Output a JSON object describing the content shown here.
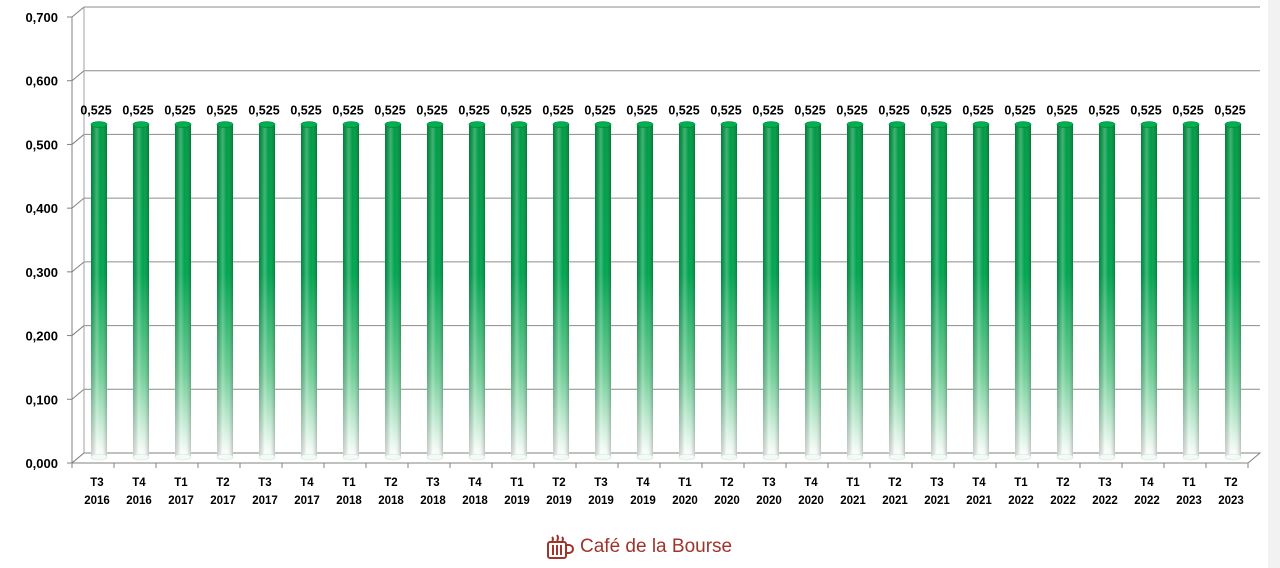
{
  "chart_data": {
    "type": "bar",
    "title": "",
    "xlabel": "",
    "ylabel": "",
    "ylim": [
      0,
      0.7
    ],
    "yticks": [
      "0,000",
      "0,100",
      "0,200",
      "0,300",
      "0,400",
      "0,500",
      "0,600",
      "0,700"
    ],
    "grid": true,
    "bar_color": "#009a44",
    "categories": [
      [
        "T3",
        "2016"
      ],
      [
        "T4",
        "2016"
      ],
      [
        "T1",
        "2017"
      ],
      [
        "T2",
        "2017"
      ],
      [
        "T3",
        "2017"
      ],
      [
        "T4",
        "2017"
      ],
      [
        "T1",
        "2018"
      ],
      [
        "T2",
        "2018"
      ],
      [
        "T3",
        "2018"
      ],
      [
        "T4",
        "2018"
      ],
      [
        "T1",
        "2019"
      ],
      [
        "T2",
        "2019"
      ],
      [
        "T3",
        "2019"
      ],
      [
        "T4",
        "2019"
      ],
      [
        "T1",
        "2020"
      ],
      [
        "T2",
        "2020"
      ],
      [
        "T3",
        "2020"
      ],
      [
        "T4",
        "2020"
      ],
      [
        "T1",
        "2021"
      ],
      [
        "T2",
        "2021"
      ],
      [
        "T3",
        "2021"
      ],
      [
        "T4",
        "2021"
      ],
      [
        "T1",
        "2022"
      ],
      [
        "T2",
        "2022"
      ],
      [
        "T3",
        "2022"
      ],
      [
        "T4",
        "2022"
      ],
      [
        "T1",
        "2023"
      ],
      [
        "T2",
        "2023"
      ]
    ],
    "values": [
      0.525,
      0.525,
      0.525,
      0.525,
      0.525,
      0.525,
      0.525,
      0.525,
      0.525,
      0.525,
      0.525,
      0.525,
      0.525,
      0.525,
      0.525,
      0.525,
      0.525,
      0.525,
      0.525,
      0.525,
      0.525,
      0.525,
      0.525,
      0.525,
      0.525,
      0.525,
      0.525,
      0.525
    ],
    "value_labels": [
      "0,525",
      "0,525",
      "0,525",
      "0,525",
      "0,525",
      "0,525",
      "0,525",
      "0,525",
      "0,525",
      "0,525",
      "0,525",
      "0,525",
      "0,525",
      "0,525",
      "0,525",
      "0,525",
      "0,525",
      "0,525",
      "0,525",
      "0,525",
      "0,525",
      "0,525",
      "0,525",
      "0,525",
      "0,525",
      "0,525",
      "0,525",
      "0,525"
    ]
  },
  "branding": {
    "logo_text": "Café de la Bourse",
    "logo_icon": "coffee-cup-icon",
    "logo_color": "#a0332b"
  }
}
